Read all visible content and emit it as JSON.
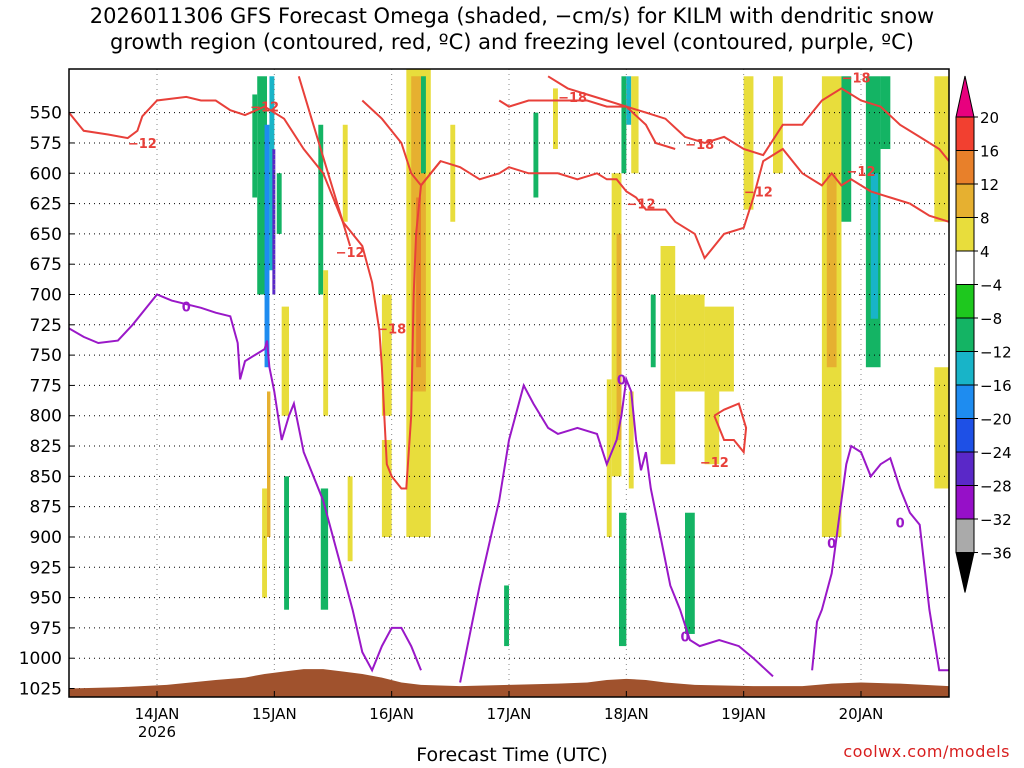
{
  "title": {
    "line1": "2026011306 GFS Forecast Omega (shaded, −cm/s) for KILM with dendritic snow",
    "line2": "growth region (contoured, red, ºC) and freezing level (contoured, purple, ºC)"
  },
  "credit": "coolwx.com/models",
  "chart_data": {
    "type": "heatmap",
    "xlabel": "Forecast Time (UTC)",
    "x_range_hours": [
      0,
      180
    ],
    "x_ticks": [
      {
        "label": "14JAN",
        "sub": "2026",
        "hour": 18
      },
      {
        "label": "15JAN",
        "sub": "",
        "hour": 42
      },
      {
        "label": "16JAN",
        "sub": "",
        "hour": 66
      },
      {
        "label": "17JAN",
        "sub": "",
        "hour": 90
      },
      {
        "label": "18JAN",
        "sub": "",
        "hour": 114
      },
      {
        "label": "19JAN",
        "sub": "",
        "hour": 138
      },
      {
        "label": "20JAN",
        "sub": "",
        "hour": 162
      }
    ],
    "y_ticks": [
      550,
      575,
      600,
      625,
      650,
      675,
      700,
      725,
      750,
      775,
      800,
      825,
      850,
      875,
      900,
      925,
      950,
      975,
      1000,
      1025
    ],
    "y_range_hpa": [
      514,
      1032
    ],
    "colorbar": {
      "labels": [
        "20",
        "16",
        "12",
        "8",
        "4",
        "−4",
        "−8",
        "−12",
        "−16",
        "−20",
        "−24",
        "−28",
        "−32",
        "−36"
      ],
      "colors": [
        "#e8007e",
        "#f24030",
        "#e8802a",
        "#e6b030",
        "#e8dd3c",
        "#ffffff",
        "#1ec81e",
        "#14b464",
        "#18b4c8",
        "#1e8cf0",
        "#1e50e6",
        "#5a28c8",
        "#9610c8",
        "#aaaaaa",
        "#000000"
      ]
    },
    "omega_cells": [
      {
        "t0": 37.5,
        "t1": 38.5,
        "p0": 535,
        "p1": 620,
        "value": -8
      },
      {
        "t0": 38.5,
        "t1": 40.5,
        "p0": 520,
        "p1": 700,
        "value": -8
      },
      {
        "t0": 40,
        "t1": 41,
        "p0": 560,
        "p1": 760,
        "value": -16
      },
      {
        "t0": 41,
        "t1": 42,
        "p0": 520,
        "p1": 680,
        "value": -12
      },
      {
        "t0": 42.5,
        "t1": 43.5,
        "p0": 600,
        "p1": 650,
        "value": -8
      },
      {
        "t0": 41.6,
        "t1": 42.2,
        "p0": 580,
        "p1": 700,
        "value": -24
      },
      {
        "t0": 40.5,
        "t1": 41.2,
        "p0": 780,
        "p1": 900,
        "value": 8
      },
      {
        "t0": 43.5,
        "t1": 45,
        "p0": 710,
        "p1": 800,
        "value": 6
      },
      {
        "t0": 44,
        "t1": 45,
        "p0": 850,
        "p1": 960,
        "value": -8
      },
      {
        "t0": 39.5,
        "t1": 40.5,
        "p0": 860,
        "p1": 950,
        "value": 5
      },
      {
        "t0": 51,
        "t1": 52,
        "p0": 560,
        "p1": 700,
        "value": -8
      },
      {
        "t0": 52,
        "t1": 53,
        "p0": 680,
        "p1": 800,
        "value": 5
      },
      {
        "t0": 51.5,
        "t1": 53,
        "p0": 860,
        "p1": 960,
        "value": -8
      },
      {
        "t0": 56,
        "t1": 57,
        "p0": 560,
        "p1": 640,
        "value": 5
      },
      {
        "t0": 57,
        "t1": 58,
        "p0": 850,
        "p1": 920,
        "value": 5
      },
      {
        "t0": 64,
        "t1": 66,
        "p0": 700,
        "p1": 800,
        "value": 5
      },
      {
        "t0": 64,
        "t1": 66,
        "p0": 820,
        "p1": 900,
        "value": 6
      },
      {
        "t0": 69,
        "t1": 74,
        "p0": 514,
        "p1": 900,
        "value": 5
      },
      {
        "t0": 70,
        "t1": 73,
        "p0": 520,
        "p1": 780,
        "value": 9
      },
      {
        "t0": 71,
        "t1": 72,
        "p0": 620,
        "p1": 760,
        "value": 13
      },
      {
        "t0": 69.5,
        "t1": 71,
        "p0": 780,
        "p1": 880,
        "value": 6
      },
      {
        "t0": 72,
        "t1": 73,
        "p0": 520,
        "p1": 600,
        "value": -8
      },
      {
        "t0": 78,
        "t1": 79,
        "p0": 560,
        "p1": 640,
        "value": 5
      },
      {
        "t0": 89,
        "t1": 90,
        "p0": 940,
        "p1": 990,
        "value": -8
      },
      {
        "t0": 95,
        "t1": 96,
        "p0": 550,
        "p1": 620,
        "value": -8
      },
      {
        "t0": 99,
        "t1": 100,
        "p0": 530,
        "p1": 580,
        "value": 5
      },
      {
        "t0": 110,
        "t1": 111,
        "p0": 770,
        "p1": 900,
        "value": 5
      },
      {
        "t0": 111,
        "t1": 113,
        "p0": 600,
        "p1": 850,
        "value": 6
      },
      {
        "t0": 112,
        "t1": 113,
        "p0": 650,
        "p1": 820,
        "value": 10
      },
      {
        "t0": 112.5,
        "t1": 114,
        "p0": 880,
        "p1": 990,
        "value": -8
      },
      {
        "t0": 113,
        "t1": 114,
        "p0": 520,
        "p1": 600,
        "value": -8
      },
      {
        "t0": 114,
        "t1": 115,
        "p0": 520,
        "p1": 560,
        "value": -12
      },
      {
        "t0": 115,
        "t1": 116.5,
        "p0": 520,
        "p1": 600,
        "value": 5
      },
      {
        "t0": 114.5,
        "t1": 115.5,
        "p0": 780,
        "p1": 860,
        "value": 6
      },
      {
        "t0": 119,
        "t1": 120,
        "p0": 700,
        "p1": 760,
        "value": -8
      },
      {
        "t0": 121,
        "t1": 124,
        "p0": 660,
        "p1": 840,
        "value": 5
      },
      {
        "t0": 124,
        "t1": 126,
        "p0": 700,
        "p1": 780,
        "value": 5
      },
      {
        "t0": 126,
        "t1": 128,
        "p0": 880,
        "p1": 980,
        "value": -8
      },
      {
        "t0": 125,
        "t1": 130,
        "p0": 700,
        "p1": 780,
        "value": 5
      },
      {
        "t0": 130,
        "t1": 136,
        "p0": 710,
        "p1": 780,
        "value": 5
      },
      {
        "t0": 130,
        "t1": 133,
        "p0": 780,
        "p1": 840,
        "value": 5
      },
      {
        "t0": 138,
        "t1": 140,
        "p0": 520,
        "p1": 630,
        "value": 5
      },
      {
        "t0": 144,
        "t1": 146,
        "p0": 520,
        "p1": 600,
        "value": 5
      },
      {
        "t0": 154,
        "t1": 158,
        "p0": 520,
        "p1": 900,
        "value": 5
      },
      {
        "t0": 155,
        "t1": 157,
        "p0": 600,
        "p1": 760,
        "value": 9
      },
      {
        "t0": 156,
        "t1": 158,
        "p0": 780,
        "p1": 850,
        "value": 6
      },
      {
        "t0": 158,
        "t1": 160,
        "p0": 520,
        "p1": 640,
        "value": -8
      },
      {
        "t0": 163,
        "t1": 166,
        "p0": 520,
        "p1": 760,
        "value": -8
      },
      {
        "t0": 164,
        "t1": 165.5,
        "p0": 600,
        "p1": 720,
        "value": -12
      },
      {
        "t0": 166,
        "t1": 168,
        "p0": 520,
        "p1": 580,
        "value": -8
      },
      {
        "t0": 177,
        "t1": 180,
        "p0": 520,
        "p1": 640,
        "value": 5
      },
      {
        "t0": 177,
        "t1": 180,
        "p0": 760,
        "p1": 860,
        "value": 5
      }
    ],
    "dgz_minus12": [
      [
        0,
        550
      ],
      [
        3,
        565
      ],
      [
        8,
        568
      ],
      [
        12,
        571
      ],
      [
        14,
        565
      ],
      [
        15,
        553
      ],
      [
        18,
        540
      ],
      [
        24,
        537
      ],
      [
        27,
        540
      ],
      [
        30,
        540
      ],
      [
        33,
        548
      ],
      [
        36,
        552
      ],
      [
        40,
        545
      ],
      [
        44,
        555
      ],
      [
        48,
        580
      ],
      [
        52,
        600
      ],
      [
        54,
        620
      ],
      [
        56,
        640
      ],
      [
        57.5,
        660
      ],
      [
        null,
        null
      ],
      [
        60,
        540
      ],
      [
        64,
        555
      ],
      [
        68,
        575
      ],
      [
        70,
        600
      ],
      [
        72,
        610
      ],
      [
        74,
        600
      ],
      [
        76,
        590
      ],
      [
        80,
        595
      ],
      [
        84,
        605
      ],
      [
        88,
        600
      ],
      [
        90,
        595
      ],
      [
        94,
        600
      ],
      [
        98,
        600
      ],
      [
        100,
        600
      ],
      [
        104,
        605
      ],
      [
        108,
        600
      ],
      [
        110,
        605
      ],
      [
        112,
        605
      ],
      [
        114,
        615
      ],
      [
        116,
        620
      ],
      [
        118,
        630
      ],
      [
        122,
        630
      ],
      [
        124,
        640
      ],
      [
        128,
        650
      ],
      [
        130,
        670
      ],
      [
        134,
        650
      ],
      [
        138,
        645
      ],
      [
        140,
        620
      ],
      [
        142,
        590
      ],
      [
        146,
        580
      ],
      [
        150,
        600
      ],
      [
        154,
        610
      ],
      [
        156,
        600
      ],
      [
        158,
        610
      ],
      [
        160,
        605
      ],
      [
        162,
        610
      ],
      [
        164,
        615
      ],
      [
        168,
        620
      ],
      [
        172,
        625
      ],
      [
        176,
        635
      ],
      [
        180,
        640
      ],
      [
        null,
        null
      ],
      [
        88,
        540
      ],
      [
        90,
        545
      ],
      [
        94,
        540
      ],
      [
        100,
        540
      ],
      [
        106,
        540
      ],
      [
        110,
        545
      ],
      [
        114,
        545
      ],
      [
        118,
        560
      ],
      [
        120,
        575
      ],
      [
        124,
        580
      ]
    ],
    "dgz_minus18": [
      [
        47,
        520
      ],
      [
        50,
        560
      ],
      [
        53,
        600
      ],
      [
        56,
        640
      ],
      [
        60,
        660
      ],
      [
        62,
        690
      ],
      [
        63.5,
        730
      ],
      [
        64,
        760
      ],
      [
        64.5,
        800
      ],
      [
        65,
        840
      ],
      [
        66,
        850
      ],
      [
        68,
        860
      ],
      [
        69,
        860
      ],
      [
        70,
        800
      ],
      [
        70.5,
        700
      ],
      [
        71,
        650
      ],
      [
        72,
        610
      ],
      [
        74,
        600
      ],
      [
        76,
        590
      ],
      [
        null,
        null
      ],
      [
        98,
        520
      ],
      [
        102,
        530
      ],
      [
        106,
        535
      ],
      [
        110,
        540
      ],
      [
        114,
        545
      ],
      [
        118,
        550
      ],
      [
        122,
        555
      ],
      [
        126,
        570
      ],
      [
        130,
        575
      ],
      [
        134,
        570
      ],
      [
        138,
        580
      ],
      [
        142,
        585
      ],
      [
        146,
        560
      ],
      [
        150,
        560
      ],
      [
        154,
        540
      ],
      [
        158,
        530
      ],
      [
        162,
        540
      ],
      [
        166,
        545
      ],
      [
        170,
        560
      ],
      [
        174,
        570
      ],
      [
        178,
        580
      ],
      [
        180,
        590
      ],
      [
        null,
        null
      ],
      [
        132,
        800
      ],
      [
        134,
        820
      ],
      [
        136,
        820
      ],
      [
        138,
        830
      ],
      [
        138.5,
        810
      ],
      [
        137,
        790
      ],
      [
        134,
        795
      ],
      [
        132,
        800
      ]
    ],
    "freezing_level": [
      [
        0,
        728
      ],
      [
        3,
        735
      ],
      [
        6,
        740
      ],
      [
        10,
        738
      ],
      [
        13,
        725
      ],
      [
        16,
        710
      ],
      [
        18,
        700
      ],
      [
        21,
        705
      ],
      [
        24,
        708
      ],
      [
        27,
        711
      ],
      [
        30,
        715
      ],
      [
        33,
        718
      ],
      [
        34.5,
        740
      ],
      [
        35,
        770
      ],
      [
        36,
        755
      ],
      [
        38,
        750
      ],
      [
        40,
        745
      ],
      [
        40.5,
        738
      ],
      [
        41,
        760
      ],
      [
        42,
        780
      ],
      [
        43.5,
        820
      ],
      [
        45,
        800
      ],
      [
        46,
        790
      ],
      [
        48,
        830
      ],
      [
        52,
        870
      ],
      [
        54,
        900
      ],
      [
        56,
        930
      ],
      [
        58,
        960
      ],
      [
        60,
        995
      ],
      [
        62,
        1010
      ],
      [
        64,
        990
      ],
      [
        66,
        975
      ],
      [
        68,
        975
      ],
      [
        70,
        990
      ],
      [
        72,
        1010
      ],
      [
        null,
        null
      ],
      [
        80,
        1020
      ],
      [
        82,
        980
      ],
      [
        84,
        940
      ],
      [
        86,
        905
      ],
      [
        88,
        870
      ],
      [
        90,
        820
      ],
      [
        92,
        790
      ],
      [
        93,
        775
      ],
      [
        95,
        790
      ],
      [
        98,
        810
      ],
      [
        100,
        815
      ],
      [
        104,
        810
      ],
      [
        108,
        815
      ],
      [
        110,
        840
      ],
      [
        112,
        820
      ],
      [
        113,
        800
      ],
      [
        114,
        770
      ],
      [
        115,
        780
      ],
      [
        116,
        820
      ],
      [
        117,
        845
      ],
      [
        118,
        830
      ],
      [
        119,
        860
      ],
      [
        121,
        900
      ],
      [
        123,
        940
      ],
      [
        125,
        960
      ],
      [
        127,
        985
      ],
      [
        129,
        990
      ],
      [
        133,
        985
      ],
      [
        137,
        990
      ],
      [
        140,
        1000
      ],
      [
        144,
        1015
      ],
      [
        null,
        null
      ],
      [
        152,
        1010
      ],
      [
        153,
        970
      ],
      [
        154,
        960
      ],
      [
        156,
        930
      ],
      [
        157,
        900
      ],
      [
        158,
        870
      ],
      [
        159,
        840
      ],
      [
        160,
        825
      ],
      [
        162,
        830
      ],
      [
        164,
        850
      ],
      [
        166,
        840
      ],
      [
        168,
        835
      ],
      [
        170,
        860
      ],
      [
        172,
        880
      ],
      [
        174,
        890
      ],
      [
        176,
        960
      ],
      [
        178,
        1010
      ],
      [
        180,
        1010
      ]
    ],
    "contour_labels": [
      {
        "text": "−12",
        "hour": 15,
        "hpa": 575,
        "color": "#e8403a"
      },
      {
        "text": "−12",
        "hour": 40,
        "hpa": 545,
        "color": "#e8403a"
      },
      {
        "text": "−12",
        "hour": 57.5,
        "hpa": 665,
        "color": "#e8403a"
      },
      {
        "text": "−18",
        "hour": 66,
        "hpa": 728,
        "color": "#e8403a"
      },
      {
        "text": "−18",
        "hour": 103,
        "hpa": 537,
        "color": "#e8403a"
      },
      {
        "text": "−18",
        "hour": 129,
        "hpa": 576,
        "color": "#e8403a"
      },
      {
        "text": "−12",
        "hour": 117,
        "hpa": 625,
        "color": "#e8403a"
      },
      {
        "text": "−12",
        "hour": 141,
        "hpa": 615,
        "color": "#e8403a"
      },
      {
        "text": "−12",
        "hour": 132,
        "hpa": 838,
        "color": "#e8403a"
      },
      {
        "text": "−18",
        "hour": 161,
        "hpa": 521,
        "color": "#e8403a"
      },
      {
        "text": "−12",
        "hour": 162,
        "hpa": 598,
        "color": "#e8403a"
      },
      {
        "text": "0",
        "hour": 24,
        "hpa": 710,
        "color": "#9a18c8"
      },
      {
        "text": "0",
        "hour": 113,
        "hpa": 770,
        "color": "#9a18c8"
      },
      {
        "text": "0",
        "hour": 126,
        "hpa": 982,
        "color": "#9a18c8"
      },
      {
        "text": "0",
        "hour": 156,
        "hpa": 905,
        "color": "#9a18c8"
      },
      {
        "text": "0",
        "hour": 170,
        "hpa": 888,
        "color": "#9a18c8"
      }
    ],
    "terrain_top_hpa": [
      [
        0,
        1025
      ],
      [
        10,
        1024
      ],
      [
        20,
        1022
      ],
      [
        30,
        1018
      ],
      [
        36,
        1016
      ],
      [
        40,
        1013
      ],
      [
        44,
        1011
      ],
      [
        48,
        1009
      ],
      [
        52,
        1009
      ],
      [
        56,
        1011
      ],
      [
        60,
        1013
      ],
      [
        64,
        1016
      ],
      [
        68,
        1020
      ],
      [
        72,
        1022
      ],
      [
        80,
        1023
      ],
      [
        90,
        1022
      ],
      [
        100,
        1021
      ],
      [
        106,
        1020
      ],
      [
        110,
        1018
      ],
      [
        114,
        1017
      ],
      [
        118,
        1018
      ],
      [
        122,
        1020
      ],
      [
        128,
        1022
      ],
      [
        140,
        1023
      ],
      [
        150,
        1023
      ],
      [
        156,
        1021
      ],
      [
        162,
        1020
      ],
      [
        170,
        1021
      ],
      [
        180,
        1023
      ]
    ]
  }
}
